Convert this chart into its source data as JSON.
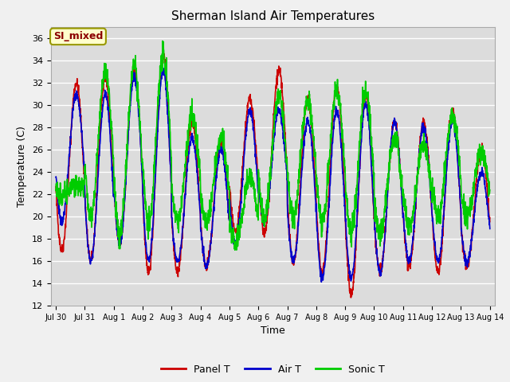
{
  "title": "Sherman Island Air Temperatures",
  "xlabel": "Time",
  "ylabel": "Temperature (C)",
  "annotation": "SI_mixed",
  "annotation_color": "#8B0000",
  "annotation_bg": "#FFFFCC",
  "ylim": [
    12,
    37
  ],
  "yticks": [
    12,
    14,
    16,
    18,
    20,
    22,
    24,
    26,
    28,
    30,
    32,
    34,
    36
  ],
  "xtick_labels": [
    "Jul 30",
    "Jul 31",
    "Aug 1",
    "Aug 2",
    "Aug 3",
    "Aug 4",
    "Aug 5",
    "Aug 6",
    "Aug 7",
    "Aug 8",
    "Aug 9",
    "Aug 10",
    "Aug 11",
    "Aug 12",
    "Aug 13",
    "Aug 14"
  ],
  "plot_bg_color": "#DCDCDC",
  "fig_bg_color": "#F0F0F0",
  "grid_color": "#FFFFFF",
  "panel_color": "#CC0000",
  "air_color": "#0000CC",
  "sonic_color": "#00CC00",
  "legend_labels": [
    "Panel T",
    "Air T",
    "Sonic T"
  ],
  "line_width": 1.2,
  "title_fontsize": 11,
  "axis_fontsize": 9,
  "tick_fontsize": 8,
  "legend_fontsize": 9
}
